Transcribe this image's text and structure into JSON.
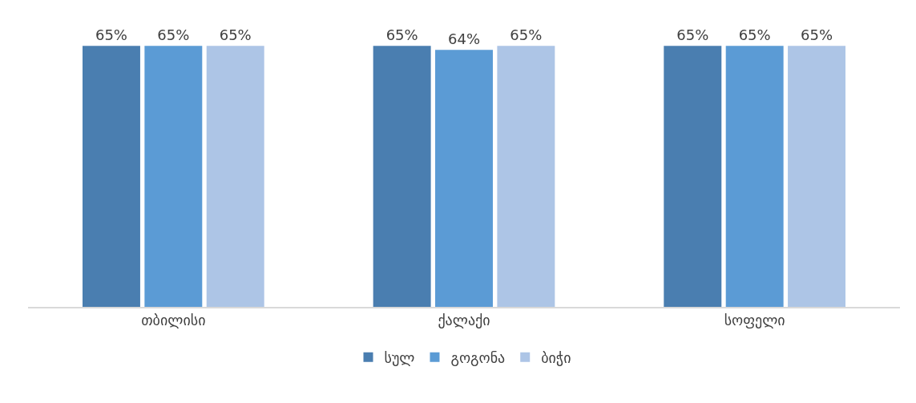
{
  "chart_data": {
    "type": "bar",
    "categories": [
      "თბილისი",
      "ქალაქი",
      "სოფელი"
    ],
    "series": [
      {
        "name": "სულ",
        "color": "#4a7eb0",
        "values": [
          65,
          65,
          65
        ],
        "value_labels": [
          "65%",
          "65%",
          "65%"
        ]
      },
      {
        "name": "გოგონა",
        "color": "#5b9bd5",
        "values": [
          65,
          64,
          65
        ],
        "value_labels": [
          "65%",
          "64%",
          "65%"
        ]
      },
      {
        "name": "ბიჭი",
        "color": "#adc5e6",
        "values": [
          65,
          65,
          65
        ],
        "value_labels": [
          "65%",
          "65%",
          "65%"
        ]
      }
    ],
    "tick_labels": "x",
    "legend": "bottom"
  }
}
